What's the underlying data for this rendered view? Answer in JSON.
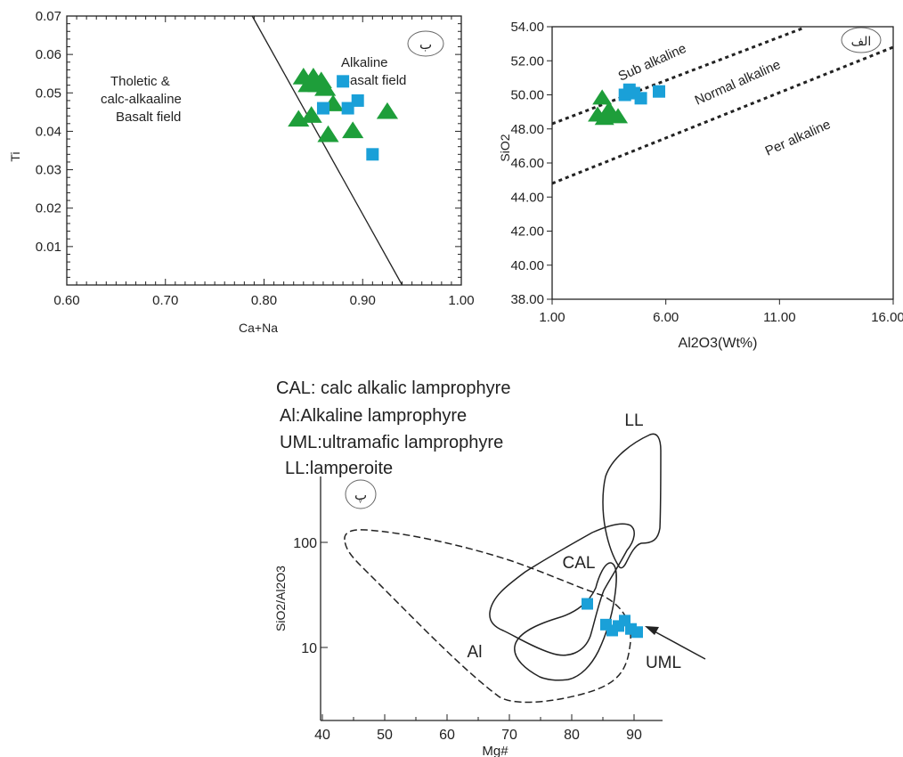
{
  "colors": {
    "triangle": "#1e9e3a",
    "square": "#1aa0d8",
    "line": "#222222"
  },
  "chart_data": [
    {
      "id": "ti-vs-ca-na",
      "type": "scatter",
      "panel_label": "ب",
      "xlabel": "Ca+Na",
      "ylabel": "Ti",
      "xlim": [
        0.6,
        1.0
      ],
      "ylim": [
        0.0,
        0.07
      ],
      "xticks": [
        "0.60",
        "0.70",
        "0.80",
        "0.90",
        "1.00"
      ],
      "yticks": [
        "0.01",
        "0.02",
        "0.03",
        "0.04",
        "0.05",
        "0.06",
        "0.07"
      ],
      "field_labels": [
        {
          "lines": [
            "Tholetic &",
            "calc-alkaaline",
            "Basalt field"
          ]
        },
        {
          "lines": [
            "Alkaline",
            "Basalt field"
          ]
        }
      ],
      "boundary_line": [
        [
          0.788,
          0.07
        ],
        [
          0.94,
          0.0
        ]
      ],
      "series": [
        {
          "marker": "triangle",
          "points": [
            [
              0.84,
              0.054
            ],
            [
              0.845,
              0.052
            ],
            [
              0.85,
              0.054
            ],
            [
              0.855,
              0.052
            ],
            [
              0.858,
              0.053
            ],
            [
              0.862,
              0.051
            ],
            [
              0.87,
              0.047
            ],
            [
              0.835,
              0.043
            ],
            [
              0.848,
              0.044
            ],
            [
              0.865,
              0.039
            ],
            [
              0.89,
              0.04
            ],
            [
              0.925,
              0.045
            ]
          ]
        },
        {
          "marker": "square",
          "points": [
            [
              0.88,
              0.053
            ],
            [
              0.86,
              0.046
            ],
            [
              0.885,
              0.046
            ],
            [
              0.895,
              0.048
            ],
            [
              0.91,
              0.034
            ]
          ]
        }
      ]
    },
    {
      "id": "sio2-vs-al2o3",
      "type": "scatter",
      "panel_label": "الف",
      "xlabel": "Al2O3(Wt%)",
      "ylabel": "SiO2",
      "xlim": [
        1.0,
        16.0
      ],
      "ylim": [
        38.0,
        54.0
      ],
      "xticks": [
        "1.00",
        "6.00",
        "11.00",
        "16.00"
      ],
      "yticks": [
        "38.00",
        "40.00",
        "42.00",
        "44.00",
        "46.00",
        "48.00",
        "50.00",
        "52.00",
        "54.00"
      ],
      "field_labels": [
        {
          "lines": [
            "Sub alkaline"
          ]
        },
        {
          "lines": [
            "Normal alkaline"
          ]
        },
        {
          "lines": [
            "Per alkaline"
          ]
        }
      ],
      "boundary_lines": [
        [
          [
            1.0,
            48.3
          ],
          [
            12.0,
            53.9
          ]
        ],
        [
          [
            1.0,
            44.8
          ],
          [
            16.0,
            52.8
          ]
        ]
      ],
      "series": [
        {
          "marker": "triangle",
          "points": [
            [
              3.2,
              49.8
            ],
            [
              3.0,
              48.8
            ],
            [
              3.3,
              48.6
            ],
            [
              3.6,
              48.9
            ],
            [
              3.9,
              48.7
            ],
            [
              3.5,
              49.1
            ]
          ]
        },
        {
          "marker": "square",
          "points": [
            [
              4.4,
              50.3
            ],
            [
              4.2,
              50.0
            ],
            [
              4.6,
              50.1
            ],
            [
              4.9,
              49.8
            ],
            [
              5.7,
              50.2
            ]
          ]
        }
      ]
    },
    {
      "id": "sio2-al2o3-vs-mg",
      "type": "scatter",
      "panel_label": "پ",
      "xlabel": "Mg#",
      "ylabel": "SiO2/Al2O3",
      "xlim": [
        40,
        95
      ],
      "ylim_log": [
        3,
        300
      ],
      "xticks": [
        "40",
        "50",
        "60",
        "70",
        "80",
        "90"
      ],
      "yticks": [
        {
          "value": 10,
          "label": "10"
        },
        {
          "value": 100,
          "label": "100"
        }
      ],
      "legend": [
        "CAL: calc alkalic lamprophyre",
        "Al:Alkaline lamprophyre",
        "UML:ultramafic lamprophyre",
        "LL:lamperoite"
      ],
      "field_labels": [
        "LL",
        "CAL",
        "Al",
        "UML"
      ],
      "series": [
        {
          "marker": "square",
          "points": [
            [
              82.5,
              26
            ],
            [
              85.5,
              16.5
            ],
            [
              86.5,
              14.5
            ],
            [
              87.5,
              16
            ],
            [
              88.5,
              18
            ],
            [
              89.5,
              15
            ],
            [
              90.5,
              14
            ]
          ]
        }
      ]
    }
  ]
}
